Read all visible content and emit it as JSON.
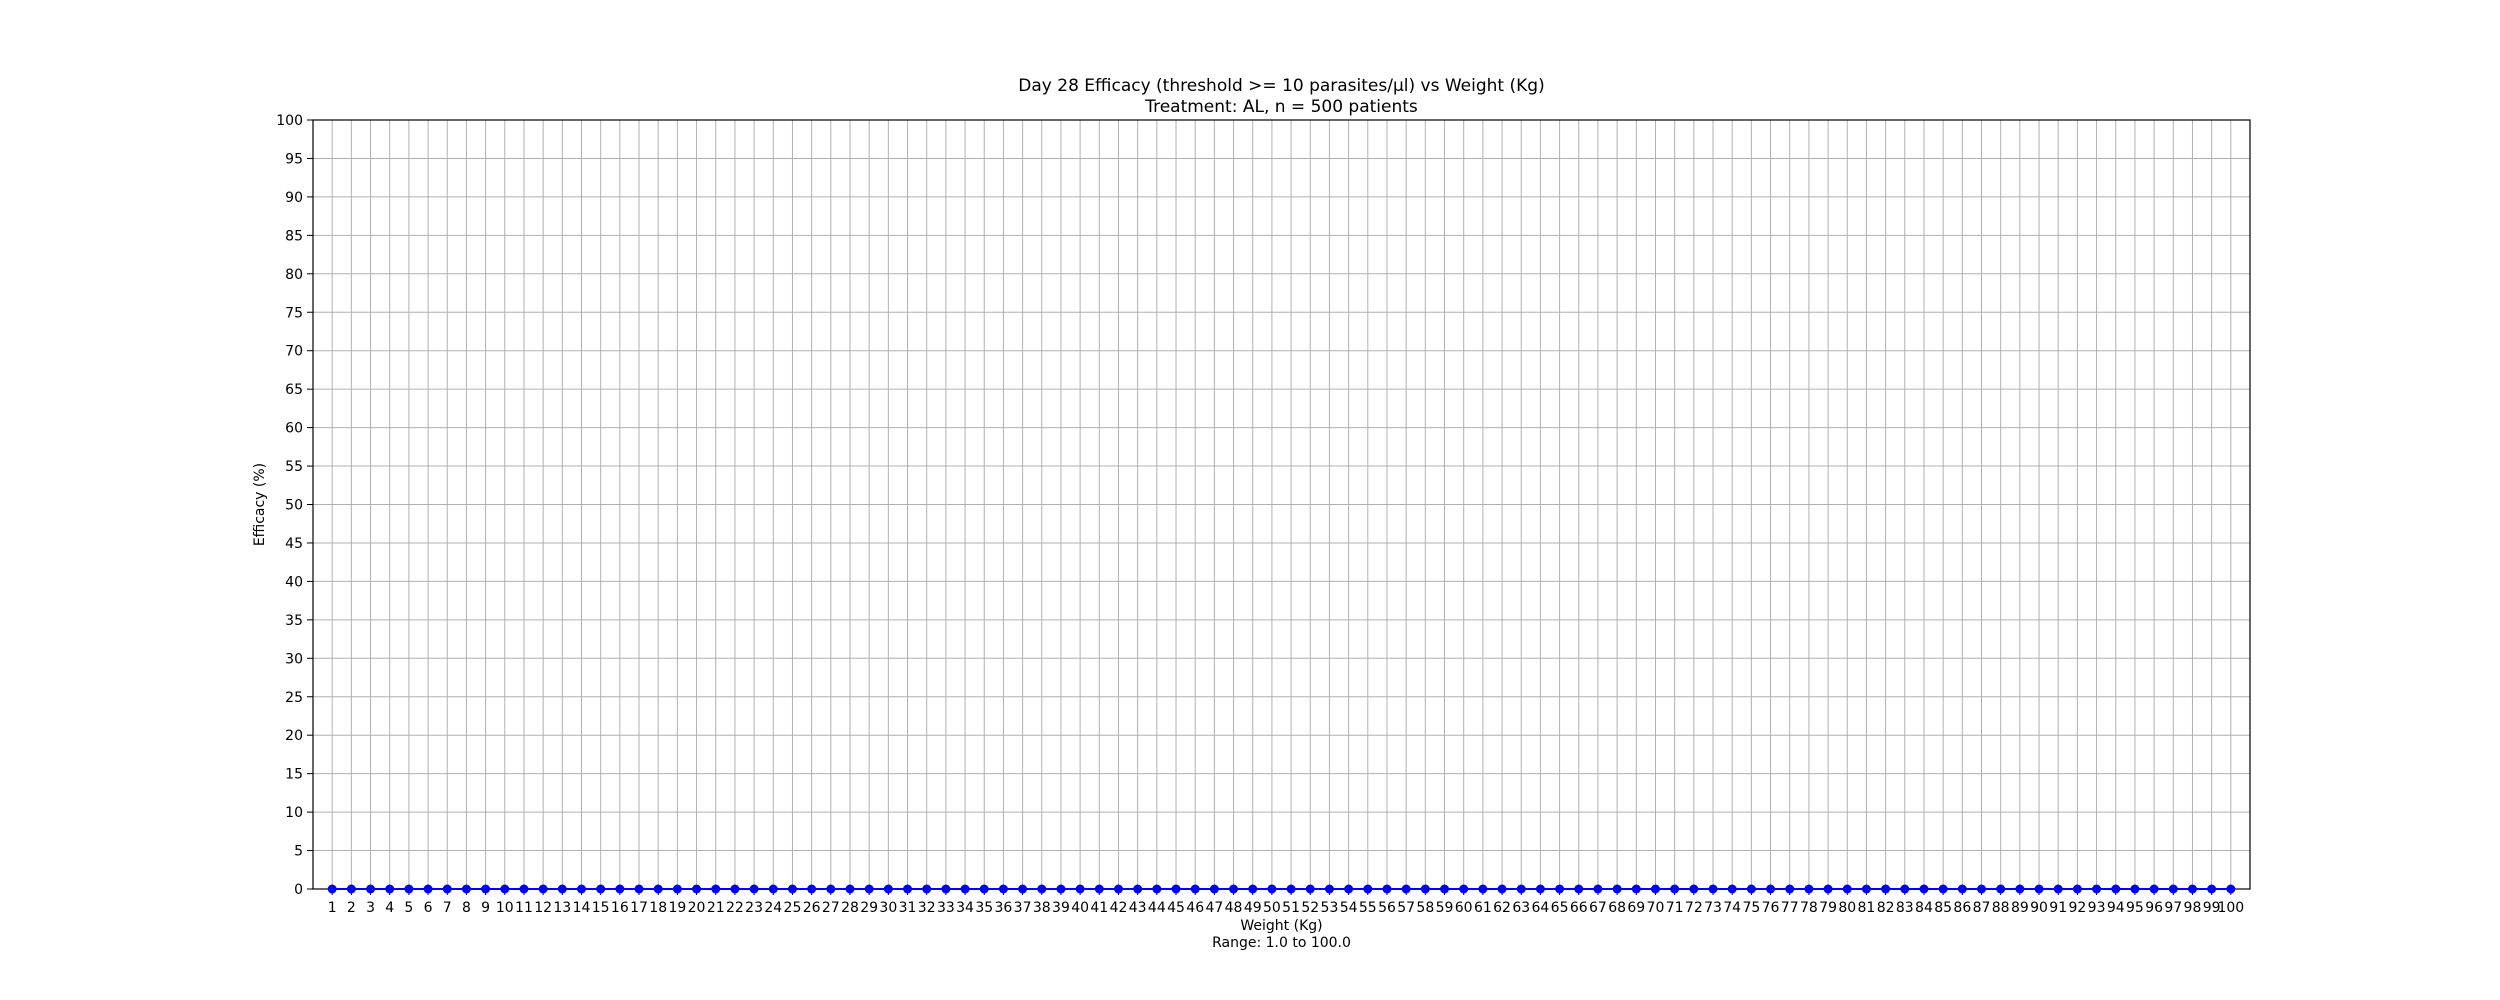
{
  "chart_data": {
    "type": "line",
    "title": "Day 28 Efficacy (threshold >= 10 parasites/µl) vs Weight (Kg)",
    "subtitle": "Treatment: AL, n = 500 patients",
    "xlabel": "Weight (Kg)",
    "xlabel_note": "Range: 1.0 to 100.0",
    "ylabel": "Efficacy (%)",
    "x": [
      1,
      2,
      3,
      4,
      5,
      6,
      7,
      8,
      9,
      10,
      11,
      12,
      13,
      14,
      15,
      16,
      17,
      18,
      19,
      20,
      21,
      22,
      23,
      24,
      25,
      26,
      27,
      28,
      29,
      30,
      31,
      32,
      33,
      34,
      35,
      36,
      37,
      38,
      39,
      40,
      41,
      42,
      43,
      44,
      45,
      46,
      47,
      48,
      49,
      50,
      51,
      52,
      53,
      54,
      55,
      56,
      57,
      58,
      59,
      60,
      61,
      62,
      63,
      64,
      65,
      66,
      67,
      68,
      69,
      70,
      71,
      72,
      73,
      74,
      75,
      76,
      77,
      78,
      79,
      80,
      81,
      82,
      83,
      84,
      85,
      86,
      87,
      88,
      89,
      90,
      91,
      92,
      93,
      94,
      95,
      96,
      97,
      98,
      99,
      100
    ],
    "series": [
      {
        "color": "#0000ff",
        "values": [
          0,
          0,
          0,
          0,
          0,
          0,
          0,
          0,
          0,
          0,
          0,
          0,
          0,
          0,
          0,
          0,
          0,
          0,
          0,
          0,
          0,
          0,
          0,
          0,
          0,
          0,
          0,
          0,
          0,
          0,
          0,
          0,
          0,
          0,
          0,
          0,
          0,
          0,
          0,
          0,
          0,
          0,
          0,
          0,
          0,
          0,
          0,
          0,
          0,
          0,
          0,
          0,
          0,
          0,
          0,
          0,
          0,
          0,
          0,
          0,
          0,
          0,
          0,
          0,
          0,
          0,
          0,
          0,
          0,
          0,
          0,
          0,
          0,
          0,
          0,
          0,
          0,
          0,
          0,
          0,
          0,
          0,
          0,
          0,
          0,
          0,
          0,
          0,
          0,
          0,
          0,
          0,
          0,
          0,
          0,
          0,
          0,
          0,
          0,
          0
        ]
      }
    ],
    "ylim": [
      0,
      100
    ],
    "yticks": [
      0,
      5,
      10,
      15,
      20,
      25,
      30,
      35,
      40,
      45,
      50,
      55,
      60,
      65,
      70,
      75,
      80,
      85,
      90,
      95,
      100
    ],
    "xlim": [
      0,
      101
    ],
    "grid": true
  }
}
